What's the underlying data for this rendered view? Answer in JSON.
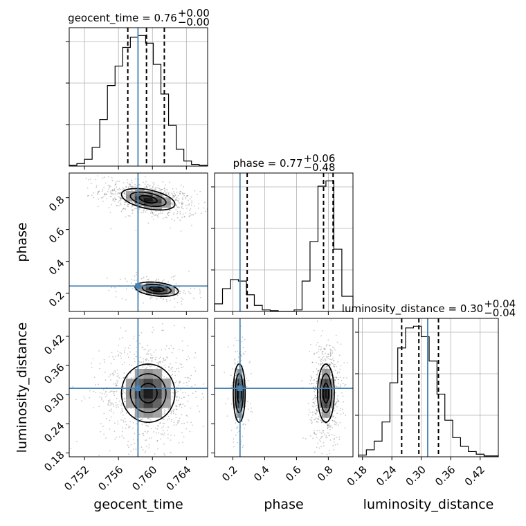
{
  "chart_data": {
    "type": "corner",
    "parameters": [
      "geocent_time",
      "phase",
      "luminosity_distance"
    ],
    "truths": {
      "geocent_time": 0.7583,
      "phase": 0.245,
      "luminosity_distance": 0.313
    },
    "axes": {
      "geocent_time": {
        "range": [
          0.7502,
          0.7665
        ],
        "ticks": [
          "0.752",
          "0.756",
          "0.760",
          "0.764"
        ]
      },
      "phase": {
        "range": [
          0.085,
          0.955
        ],
        "ticks": [
          "0.2",
          "0.4",
          "0.6",
          "0.8"
        ]
      },
      "luminosity_distance": {
        "range": [
          0.172,
          0.457
        ],
        "ticks": [
          "0.18",
          "0.24",
          "0.30",
          "0.36",
          "0.42"
        ]
      }
    },
    "titles": [
      {
        "param": "geocent_time",
        "prefix": "geocent_time = 0.76",
        "plus": "+0.00",
        "minus": "−0.00"
      },
      {
        "param": "phase",
        "prefix": "phase = 0.77",
        "plus": "+0.06",
        "minus": "−0.48"
      },
      {
        "param": "luminosity_distance",
        "prefix": "luminosity_distance = 0.30",
        "plus": "+0.04",
        "minus": "−0.04"
      }
    ],
    "quantiles": {
      "geocent_time": [
        0.7571,
        0.7593,
        0.7614
      ],
      "phase": [
        0.29,
        0.77,
        0.83
      ],
      "luminosity_distance": [
        0.26,
        0.295,
        0.335
      ]
    },
    "histograms": {
      "geocent_time": {
        "edges": [
          0.7502,
          0.7511,
          0.752,
          0.7529,
          0.7538,
          0.7547,
          0.7556,
          0.7565,
          0.7574,
          0.7583,
          0.7592,
          0.7601,
          0.761,
          0.7619,
          0.7628,
          0.7637,
          0.7646,
          0.7655,
          0.7665
        ],
        "counts": [
          1,
          3,
          8,
          22,
          55,
          95,
          118,
          140,
          152,
          154,
          145,
          120,
          85,
          48,
          20,
          6,
          2,
          1
        ]
      },
      "phase": {
        "edges": [
          0.085,
          0.135,
          0.185,
          0.235,
          0.285,
          0.335,
          0.385,
          0.435,
          0.485,
          0.535,
          0.585,
          0.635,
          0.685,
          0.735,
          0.785,
          0.835,
          0.885,
          0.955
        ],
        "counts": [
          10,
          30,
          42,
          40,
          22,
          8,
          2,
          1,
          0,
          0,
          2,
          40,
          92,
          165,
          172,
          82,
          20
        ]
      },
      "luminosity_distance": {
        "edges": [
          0.172,
          0.188,
          0.204,
          0.22,
          0.236,
          0.252,
          0.268,
          0.284,
          0.3,
          0.316,
          0.332,
          0.348,
          0.364,
          0.38,
          0.396,
          0.412,
          0.428,
          0.457
        ],
        "counts": [
          2,
          8,
          18,
          40,
          85,
          125,
          148,
          150,
          138,
          110,
          72,
          42,
          22,
          12,
          6,
          3,
          1
        ]
      }
    },
    "contours": [
      {
        "x": "geocent_time",
        "y": "phase",
        "modes": [
          {
            "cx": 0.7595,
            "cy": 0.79,
            "sx": 0.0021,
            "sy": 0.045,
            "rho": -0.45,
            "n": 700
          },
          {
            "cx": 0.7605,
            "cy": 0.225,
            "sx": 0.0017,
            "sy": 0.03,
            "rho": -0.3,
            "n": 200
          }
        ],
        "levels": [
          0.5,
          1.0,
          1.5
        ]
      },
      {
        "x": "geocent_time",
        "y": "luminosity_distance",
        "modes": [
          {
            "cx": 0.7595,
            "cy": 0.303,
            "sx": 0.0021,
            "sy": 0.04,
            "rho": 0.0,
            "n": 900
          }
        ],
        "levels": [
          0.5,
          1.0,
          1.5
        ]
      },
      {
        "x": "phase",
        "y": "luminosity_distance",
        "modes": [
          {
            "cx": 0.785,
            "cy": 0.303,
            "sx": 0.035,
            "sy": 0.04,
            "rho": 0.0,
            "n": 700
          },
          {
            "cx": 0.24,
            "cy": 0.303,
            "sx": 0.025,
            "sy": 0.04,
            "rho": 0.0,
            "n": 200
          }
        ],
        "levels": [
          0.5,
          1.0,
          1.5
        ]
      }
    ],
    "colors": {
      "truth": "#4682b4",
      "hist": "#000000",
      "grid": "#b0b0b0",
      "scatter": "#000000"
    },
    "grid": true
  }
}
